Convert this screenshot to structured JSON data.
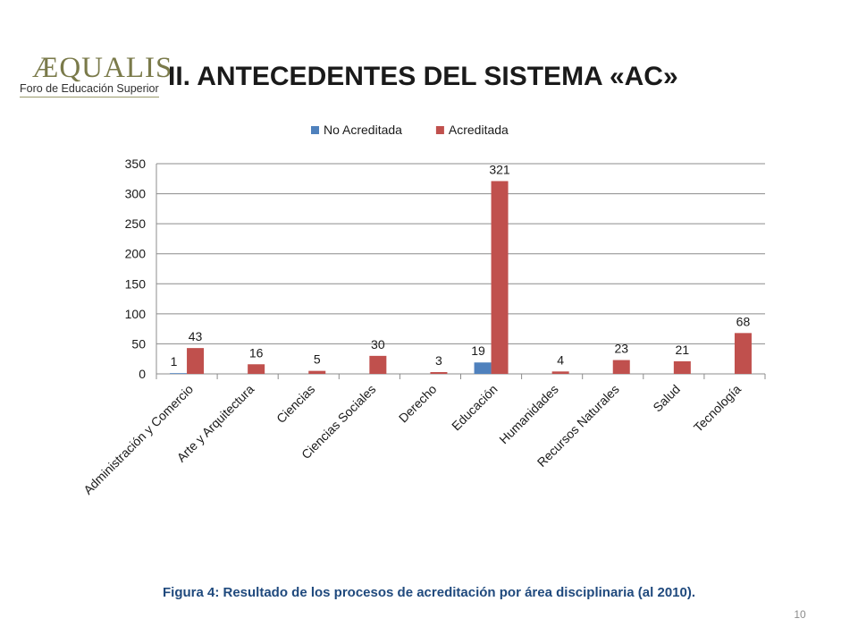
{
  "header": {
    "logo_word": "ÆQUALIS",
    "logo_subtitle": "Foro de Educación Superior",
    "title": "II. ANTECEDENTES  DEL SISTEMA «AC»"
  },
  "caption": "Figura 4: Resultado de los procesos de acreditación por área disciplinaria  (al 2010).",
  "page_number": "10",
  "colors": {
    "no_acreditada": "#4f81bd",
    "acreditada": "#c0504d",
    "gridline": "#8c8c8c",
    "text": "#1a1a1a"
  },
  "chart_data": {
    "type": "bar",
    "title": "",
    "xlabel": "",
    "ylabel": "",
    "ylim": [
      0,
      350
    ],
    "yticks": [
      0,
      50,
      100,
      150,
      200,
      250,
      300,
      350
    ],
    "grid": true,
    "legend_position": "top",
    "categories": [
      "Administración y Comercio",
      "Arte y Arquitectura",
      "Ciencias",
      "Ciencias Sociales",
      "Derecho",
      "Educación",
      "Humanidades",
      "Recursos Naturales",
      "Salud",
      "Tecnología"
    ],
    "series": [
      {
        "name": "No Acreditada",
        "color": "#4f81bd",
        "values": [
          1,
          null,
          null,
          null,
          null,
          19,
          null,
          null,
          null,
          null
        ]
      },
      {
        "name": "Acreditada",
        "color": "#c0504d",
        "values": [
          43,
          16,
          5,
          30,
          3,
          321,
          4,
          23,
          21,
          68
        ]
      }
    ]
  }
}
